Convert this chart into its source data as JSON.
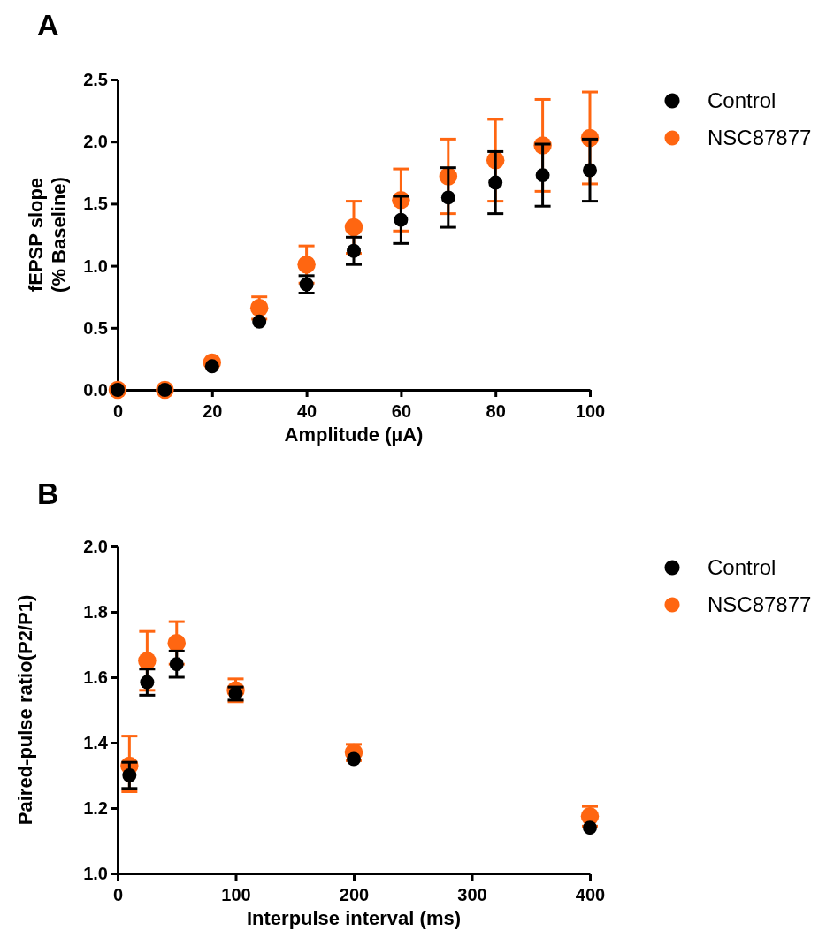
{
  "chart_data": [
    {
      "type": "scatter",
      "title": "A",
      "xlabel": "Amplitude (µA)",
      "ylabel": "fEPSP slope\n(% Baseline)",
      "xlim": [
        0,
        100
      ],
      "xticks": [
        0,
        20,
        40,
        60,
        80,
        100
      ],
      "ylim": [
        0,
        2.5
      ],
      "yticks": [
        {
          "value": 0,
          "label": "0.0"
        },
        0.5,
        {
          "value": 1,
          "label": "1.0"
        },
        1.5,
        {
          "value": 2,
          "label": "2.0"
        },
        2.5
      ],
      "x": [
        0,
        10,
        20,
        30,
        40,
        50,
        60,
        70,
        80,
        90,
        100
      ],
      "marker": "circle",
      "grid": false,
      "legend": "top right",
      "series": [
        {
          "name": "Control",
          "color": "#000000",
          "values": [
            0,
            0,
            0.19,
            0.55,
            0.85,
            1.12,
            1.37,
            1.55,
            1.67,
            1.73,
            1.77
          ],
          "errors": [
            null,
            null,
            null,
            null,
            0.07,
            0.11,
            0.19,
            0.24,
            0.25,
            0.25,
            0.25
          ]
        },
        {
          "name": "NSC87877",
          "color": "#ff6611",
          "values": [
            0,
            0,
            0.22,
            0.66,
            1.01,
            1.31,
            1.53,
            1.72,
            1.85,
            1.97,
            2.03
          ],
          "errors": [
            null,
            null,
            null,
            0.09,
            0.15,
            0.21,
            0.25,
            0.3,
            0.33,
            0.37,
            0.37
          ]
        }
      ]
    },
    {
      "type": "scatter",
      "title": "B",
      "xlabel": "Interpulse interval (ms)",
      "ylabel": "Paired-pulse ratio(P2/P1)",
      "xlim": [
        0,
        400
      ],
      "xticks": [
        0,
        100,
        200,
        300,
        400
      ],
      "ylim": [
        1,
        2
      ],
      "yticks": [
        {
          "value": 1,
          "label": "1.0"
        },
        1.2,
        1.4,
        1.6,
        1.8,
        {
          "value": 2,
          "label": "2.0"
        }
      ],
      "x": [
        10,
        25,
        50,
        100,
        200,
        400
      ],
      "marker": "circle",
      "grid": false,
      "legend": "top right",
      "series": [
        {
          "name": "Control",
          "color": "#000000",
          "values": [
            1.3,
            1.585,
            1.64,
            1.55,
            1.35,
            1.14
          ],
          "errors": [
            0.04,
            0.04,
            0.04,
            0.02,
            null,
            null
          ]
        },
        {
          "name": "NSC87877",
          "color": "#ff6611",
          "values": [
            1.33,
            1.65,
            1.705,
            1.56,
            1.37,
            1.175
          ],
          "errors": [
            [
              1.25,
              1.42
            ],
            0.09,
            0.065,
            0.035,
            0.025,
            0.03
          ]
        }
      ]
    }
  ]
}
